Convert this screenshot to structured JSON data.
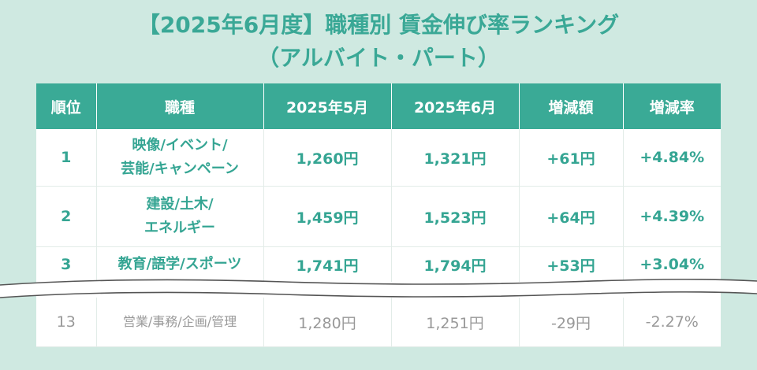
{
  "title_line1": "【2025年6月度】職種別 賃金伸び率ランキング",
  "title_line2": "（アルバイト・パート）",
  "colors": {
    "accent": "#3aaa96",
    "background": "#cfe9e1",
    "muted": "#999999"
  },
  "headers": [
    "順位",
    "職種",
    "2025年5月",
    "2025年6月",
    "増減額",
    "増減率"
  ],
  "rows": [
    {
      "rank": "1",
      "job_line1": "映像/イベント/",
      "job_line2": "芸能/キャンペーン",
      "may": "1,260円",
      "june": "1,321円",
      "diff": "+61円",
      "rate": "+4.84%"
    },
    {
      "rank": "2",
      "job_line1": "建設/土木/",
      "job_line2": "エネルギー",
      "may": "1,459円",
      "june": "1,523円",
      "diff": "+64円",
      "rate": "+4.39%"
    },
    {
      "rank": "3",
      "job_line1": "教育/語学/スポーツ",
      "job_line2": "",
      "may": "1,741円",
      "june": "1,794円",
      "diff": "+53円",
      "rate": "+3.04%"
    },
    {
      "rank": "13",
      "job_line1": "営業/事務/企画/管理",
      "job_line2": "",
      "may": "1,280円",
      "june": "1,251円",
      "diff": "-29円",
      "rate": "-2.27%"
    }
  ]
}
